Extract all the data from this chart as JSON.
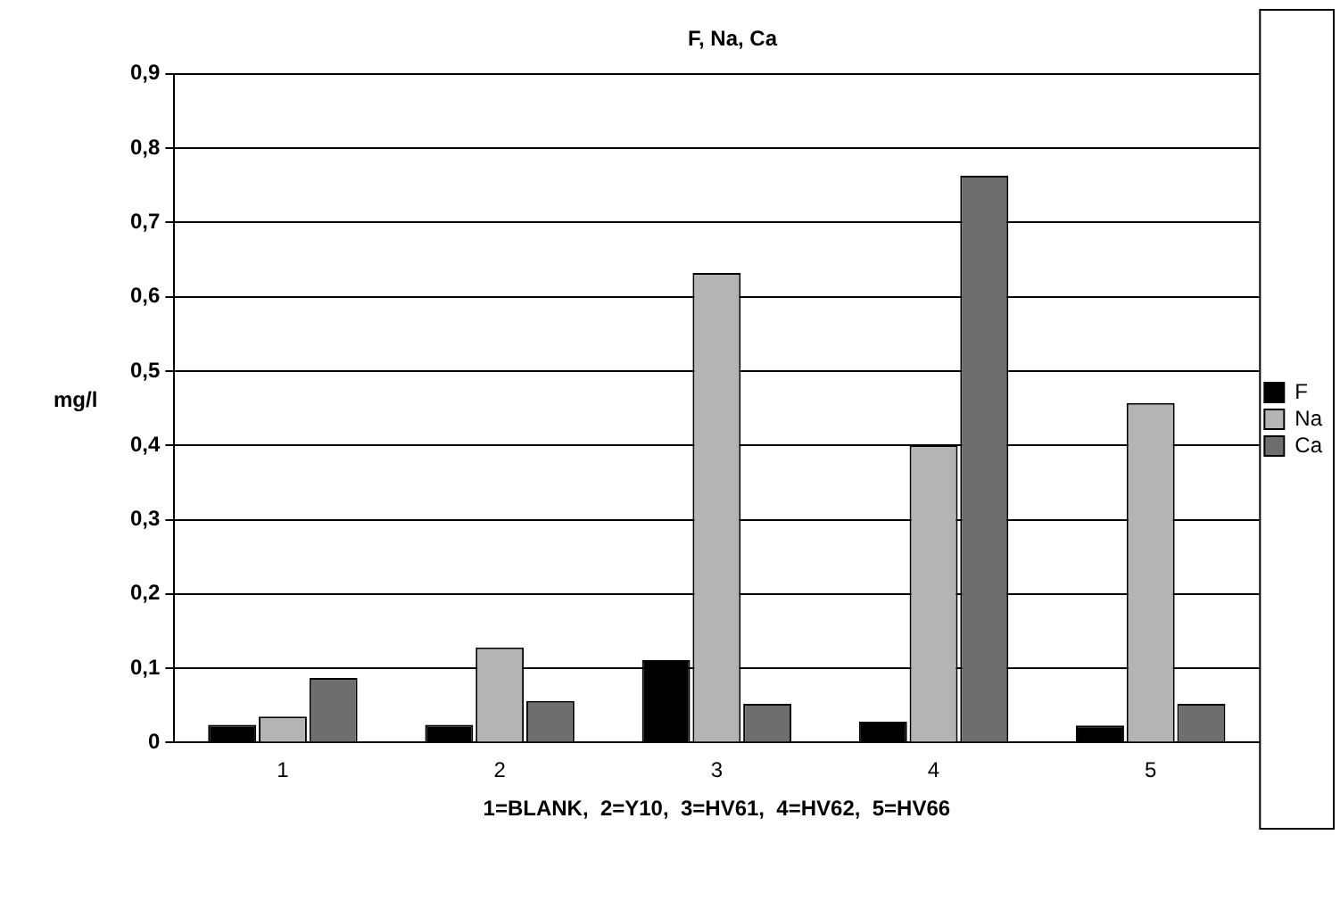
{
  "chart_data": {
    "type": "bar",
    "title": "F, Na, Ca",
    "xlabel": "1=BLANK,  2=Y10,  3=HV61,  4=HV62,  5=HV66",
    "ylabel": "mg/l",
    "categories": [
      "1",
      "2",
      "3",
      "4",
      "5"
    ],
    "series": [
      {
        "name": "F",
        "color": "#000000",
        "values": [
          0.024,
          0.024,
          0.111,
          0.028,
          0.023
        ]
      },
      {
        "name": "Na",
        "color": "#b4b4b4",
        "values": [
          0.035,
          0.128,
          0.632,
          0.4,
          0.457
        ]
      },
      {
        "name": "Ca",
        "color": "#6e6e6e",
        "values": [
          0.087,
          0.056,
          0.052,
          0.763,
          0.052
        ]
      }
    ],
    "ylim": [
      0,
      0.9
    ],
    "yticks": [
      0,
      {
        "value": 0.1,
        "label": "0,1"
      },
      {
        "value": 0.2,
        "label": "0,2"
      },
      {
        "value": 0.3,
        "label": "0,3"
      },
      {
        "value": 0.4,
        "label": "0,4"
      },
      {
        "value": 0.5,
        "label": "0,5"
      },
      {
        "value": 0.6,
        "label": "0,6"
      },
      {
        "value": 0.7,
        "label": "0,7"
      },
      {
        "value": 0.8,
        "label": "0,8"
      },
      {
        "value": 0.9,
        "label": "0,9"
      }
    ],
    "grid": "y",
    "legend": "right"
  }
}
